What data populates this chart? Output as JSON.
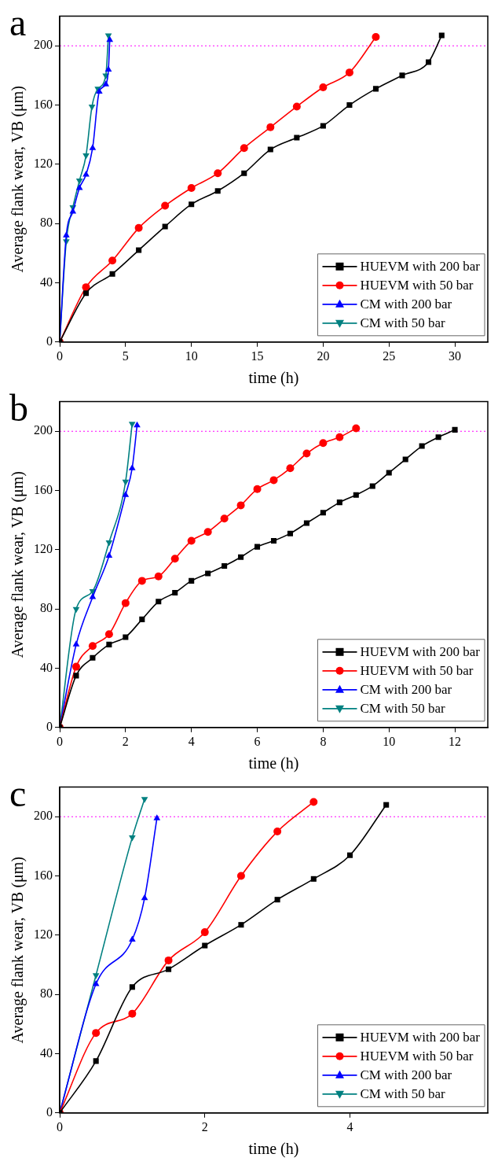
{
  "chart_data": [
    {
      "type": "line",
      "title": "a",
      "xlabel": "time (h)",
      "ylabel": "Average flank wear, VB (μm)",
      "xlim": [
        0,
        32.5
      ],
      "xticks": [
        0,
        5,
        10,
        15,
        20,
        25,
        30
      ],
      "ylim": [
        0,
        220
      ],
      "yticks": [
        0,
        40,
        80,
        120,
        160,
        200
      ],
      "grid": false,
      "legend": "bottom right",
      "ref_lines": [
        {
          "axis": "y",
          "value": 200,
          "color": "#ff00ff",
          "line_style": "dotted"
        }
      ],
      "series": [
        {
          "name": "HUEVM with 200 bar",
          "color": "#000000",
          "marker": "square",
          "x": [
            0,
            2,
            4,
            6,
            8,
            10,
            12,
            14,
            16,
            18,
            20,
            22,
            24,
            26,
            28,
            29
          ],
          "values": [
            0,
            33,
            46,
            62,
            78,
            93,
            102,
            114,
            130,
            138,
            146,
            160,
            171,
            180,
            189,
            207
          ]
        },
        {
          "name": "HUEVM with 50 bar",
          "color": "#ff0000",
          "marker": "circle",
          "x": [
            0,
            2,
            4,
            6,
            8,
            10,
            12,
            14,
            16,
            18,
            20,
            22,
            24
          ],
          "values": [
            0,
            37,
            55,
            77,
            92,
            104,
            114,
            131,
            145,
            159,
            172,
            182,
            206
          ]
        },
        {
          "name": "CM with 200 bar",
          "color": "#0000ff",
          "marker": "triangle",
          "x": [
            0,
            0.5,
            1,
            1.5,
            2,
            2.5,
            3,
            3.5,
            3.7,
            3.8
          ],
          "values": [
            0,
            72,
            88,
            104,
            113,
            131,
            169,
            174,
            184,
            204
          ]
        },
        {
          "name": "CM with 50 bar",
          "color": "#008080",
          "marker": "triangle-down",
          "x": [
            0,
            0.5,
            1,
            1.5,
            2,
            2.45,
            2.9,
            3.5,
            3.7
          ],
          "values": [
            0,
            68,
            91,
            109,
            126,
            159,
            171,
            180,
            207
          ]
        }
      ]
    },
    {
      "type": "line",
      "title": "b",
      "xlabel": "time (h)",
      "ylabel": "Average flank wear, VB (μm)",
      "xlim": [
        0,
        13
      ],
      "xticks": [
        0,
        2,
        4,
        6,
        8,
        10,
        12
      ],
      "ylim": [
        0,
        220
      ],
      "yticks": [
        0,
        40,
        80,
        120,
        160,
        200
      ],
      "grid": false,
      "legend": "bottom right",
      "ref_lines": [
        {
          "axis": "y",
          "value": 200,
          "color": "#ff00ff",
          "line_style": "dotted"
        }
      ],
      "series": [
        {
          "name": "HUEVM with 200 bar",
          "color": "#000000",
          "marker": "square",
          "x": [
            0,
            0.5,
            1,
            1.5,
            2,
            2.5,
            3,
            3.5,
            4,
            4.5,
            5,
            5.5,
            6,
            6.5,
            7,
            7.5,
            8,
            8.5,
            9,
            9.5,
            10,
            10.5,
            11,
            11.5,
            12
          ],
          "values": [
            0,
            35,
            47,
            56,
            61,
            73,
            85,
            91,
            99,
            104,
            109,
            115,
            122,
            126,
            131,
            138,
            145,
            152,
            157,
            163,
            172,
            181,
            190,
            196,
            201
          ]
        },
        {
          "name": "HUEVM with 50 bar",
          "color": "#ff0000",
          "marker": "circle",
          "x": [
            0,
            0.5,
            1,
            1.5,
            2,
            2.5,
            3,
            3.5,
            4,
            4.5,
            5,
            5.5,
            6,
            6.5,
            7,
            7.5,
            8,
            8.5,
            9
          ],
          "values": [
            0,
            41,
            55,
            63,
            84,
            99,
            102,
            114,
            126,
            132,
            141,
            150,
            161,
            167,
            175,
            185,
            192,
            196,
            202
          ]
        },
        {
          "name": "CM with 200 bar",
          "color": "#0000ff",
          "marker": "triangle",
          "x": [
            0,
            0.5,
            1,
            1.5,
            2,
            2.2,
            2.35
          ],
          "values": [
            0,
            56,
            88,
            116,
            157,
            175,
            204
          ]
        },
        {
          "name": "CM with 50 bar",
          "color": "#008080",
          "marker": "triangle-down",
          "x": [
            0,
            0.5,
            1,
            1.5,
            2,
            2.2
          ],
          "values": [
            0,
            80,
            92,
            125,
            166,
            205
          ]
        }
      ]
    },
    {
      "type": "line",
      "title": "c",
      "xlabel": "time (h)",
      "ylabel": "Average flank wear, VB (μm)",
      "xlim": [
        0,
        5.9
      ],
      "xticks": [
        0,
        2,
        4
      ],
      "ylim": [
        0,
        220
      ],
      "yticks": [
        0,
        40,
        80,
        120,
        160,
        200
      ],
      "grid": false,
      "legend": "bottom right",
      "ref_lines": [
        {
          "axis": "y",
          "value": 200,
          "color": "#ff00ff",
          "line_style": "dotted"
        }
      ],
      "series": [
        {
          "name": "HUEVM with 200 bar",
          "color": "#000000",
          "marker": "square",
          "x": [
            0,
            0.5,
            1,
            1.5,
            2,
            2.5,
            3,
            3.5,
            4,
            4.5
          ],
          "values": [
            0,
            35,
            85,
            97,
            113,
            127,
            144,
            158,
            174,
            208
          ]
        },
        {
          "name": "HUEVM with 50 bar",
          "color": "#ff0000",
          "marker": "circle",
          "x": [
            0,
            0.5,
            1,
            1.5,
            2,
            2.5,
            3,
            3.5
          ],
          "values": [
            0,
            54,
            67,
            103,
            122,
            160,
            190,
            210
          ]
        },
        {
          "name": "CM with 200 bar",
          "color": "#0000ff",
          "marker": "triangle",
          "x": [
            0,
            0.5,
            1,
            1.17,
            1.34
          ],
          "values": [
            0,
            87,
            117,
            145,
            199
          ]
        },
        {
          "name": "CM with 50 bar",
          "color": "#008080",
          "marker": "triangle-down",
          "x": [
            0,
            0.5,
            1,
            1.17
          ],
          "values": [
            0,
            93,
            186,
            212
          ]
        }
      ]
    }
  ]
}
